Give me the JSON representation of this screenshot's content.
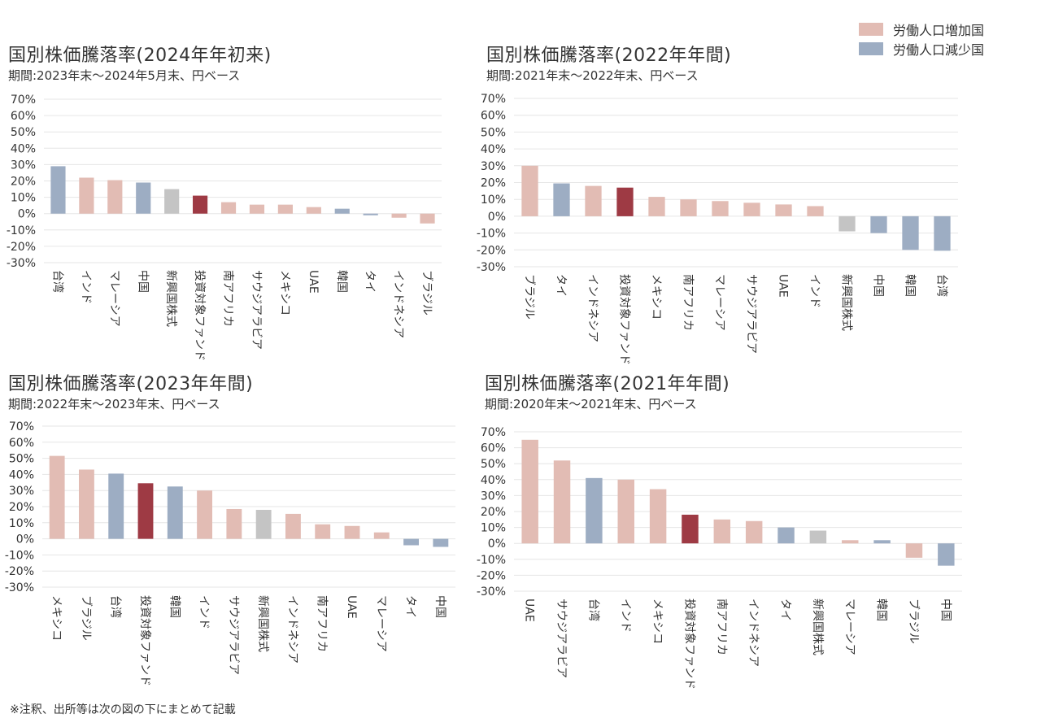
{
  "legend": {
    "items": [
      {
        "label": "労働人口増加国",
        "color": "#e2bcb4"
      },
      {
        "label": "労働人口減少国",
        "color": "#9dadc3"
      }
    ]
  },
  "colors": {
    "increase": "#e2bcb4",
    "decrease": "#9dadc3",
    "emerging": "#c4c4c4",
    "fund": "#9e3a44",
    "grid": "#e6e6e6"
  },
  "footnote": "※注釈、出所等は次の図の下にまとめて記載",
  "chart_data": [
    {
      "type": "bar",
      "title": "国別株価騰落率(2024年年初来)",
      "subtitle": "期間:2023年末～2024年5月末、円ベース",
      "ylim": [
        -30,
        70
      ],
      "yticks": [
        "70%",
        "60%",
        "50%",
        "40%",
        "30%",
        "20%",
        "10%",
        "0%",
        "-10%",
        "-20%",
        "-30%"
      ],
      "categories": [
        "台湾",
        "インド",
        "マレーシア",
        "中国",
        "新興国株式",
        "投資対象ファンド",
        "南アフリカ",
        "サウジアラビア",
        "メキシコ",
        "UAE",
        "韓国",
        "タイ",
        "インドネシア",
        "ブラジル"
      ],
      "values": [
        29,
        22,
        20.5,
        19,
        15,
        11,
        7,
        5.5,
        5.5,
        4,
        3,
        -1,
        -2.5,
        -6
      ],
      "groups": [
        "decrease",
        "increase",
        "increase",
        "decrease",
        "emerging",
        "fund",
        "increase",
        "increase",
        "increase",
        "increase",
        "decrease",
        "decrease",
        "increase",
        "increase"
      ]
    },
    {
      "type": "bar",
      "title": "国別株価騰落率(2022年年間)",
      "subtitle": "期間:2021年末～2022年末、円ベース",
      "ylim": [
        -30,
        70
      ],
      "yticks": [
        "70%",
        "60%",
        "50%",
        "40%",
        "30%",
        "20%",
        "10%",
        "0%",
        "-10%",
        "-20%",
        "-30%"
      ],
      "categories": [
        "ブラジル",
        "タイ",
        "インドネシア",
        "投資対象ファンド",
        "メキシコ",
        "南アフリカ",
        "マレーシア",
        "サウジアラビア",
        "UAE",
        "インド",
        "新興国株式",
        "中国",
        "韓国",
        "台湾"
      ],
      "values": [
        30,
        19.5,
        18,
        17,
        11.5,
        10,
        9,
        8,
        7,
        6,
        -9,
        -10,
        -20,
        -20.5
      ],
      "groups": [
        "increase",
        "decrease",
        "increase",
        "fund",
        "increase",
        "increase",
        "increase",
        "increase",
        "increase",
        "increase",
        "emerging",
        "decrease",
        "decrease",
        "decrease"
      ]
    },
    {
      "type": "bar",
      "title": "国別株価騰落率(2023年年間)",
      "subtitle": "期間:2022年末～2023年末、円ベース",
      "ylim": [
        -30,
        70
      ],
      "yticks": [
        "70%",
        "60%",
        "50%",
        "40%",
        "30%",
        "20%",
        "10%",
        "0%",
        "-10%",
        "-20%",
        "-30%"
      ],
      "categories": [
        "メキシコ",
        "ブラジル",
        "台湾",
        "投資対象ファンド",
        "韓国",
        "インド",
        "サウジアラビア",
        "新興国株式",
        "インドネシア",
        "南アフリカ",
        "UAE",
        "マレーシア",
        "タイ",
        "中国"
      ],
      "values": [
        51.5,
        43,
        40.5,
        34.5,
        32.5,
        30,
        18.5,
        18,
        15.5,
        9,
        8,
        4,
        -4,
        -5
      ],
      "groups": [
        "increase",
        "increase",
        "decrease",
        "fund",
        "decrease",
        "increase",
        "increase",
        "emerging",
        "increase",
        "increase",
        "increase",
        "increase",
        "decrease",
        "decrease"
      ]
    },
    {
      "type": "bar",
      "title": "国別株価騰落率(2021年年間)",
      "subtitle": "期間:2020年末～2021年末、円ベース",
      "ylim": [
        -30,
        70
      ],
      "yticks": [
        "70%",
        "60%",
        "50%",
        "40%",
        "30%",
        "20%",
        "10%",
        "0%",
        "-10%",
        "-20%",
        "-30%"
      ],
      "categories": [
        "UAE",
        "サウジアラビア",
        "台湾",
        "インド",
        "メキシコ",
        "投資対象ファンド",
        "南アフリカ",
        "インドネシア",
        "タイ",
        "新興国株式",
        "マレーシア",
        "韓国",
        "ブラジル",
        "中国"
      ],
      "values": [
        65,
        52,
        41,
        40,
        34,
        18,
        15,
        14,
        10,
        8,
        2,
        2,
        -9,
        -14
      ],
      "groups": [
        "increase",
        "increase",
        "decrease",
        "increase",
        "increase",
        "fund",
        "increase",
        "increase",
        "decrease",
        "emerging",
        "increase",
        "decrease",
        "increase",
        "decrease"
      ]
    }
  ]
}
